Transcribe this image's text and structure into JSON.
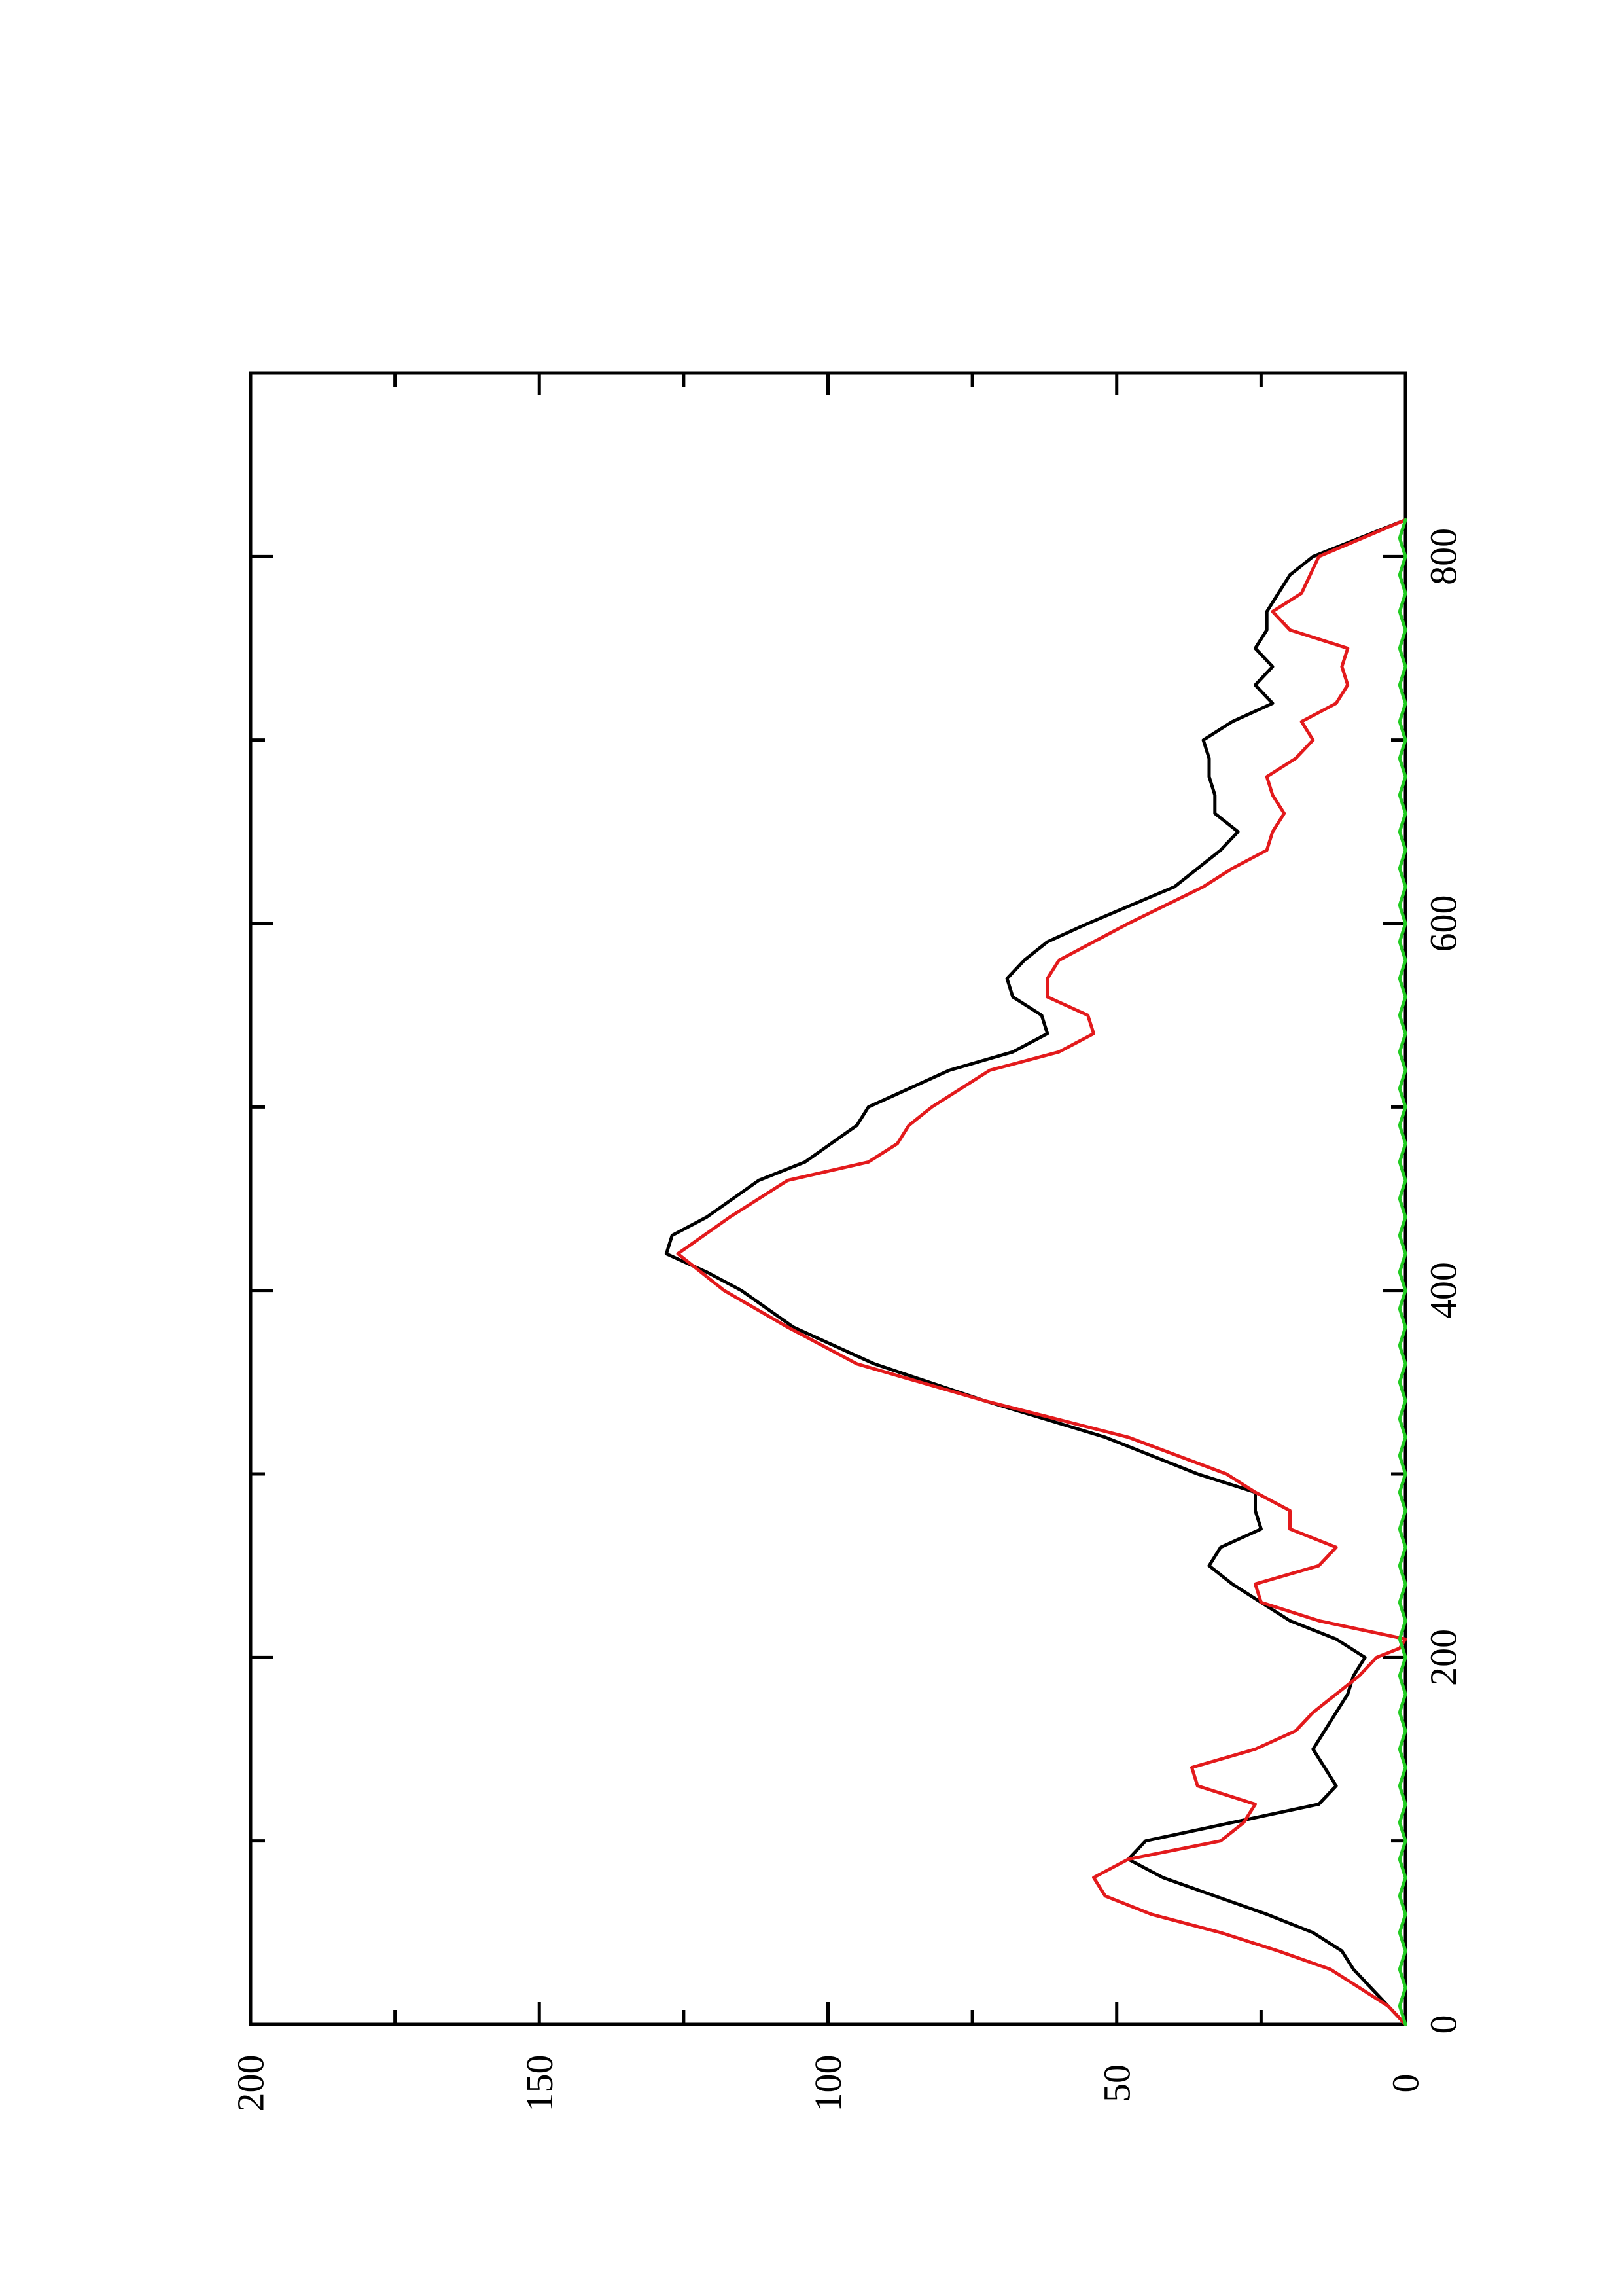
{
  "chart_data": {
    "type": "line",
    "orientation": "rotated-90-ccw",
    "title": "",
    "xlabel": "",
    "ylabel": "",
    "xlim": [
      0,
      900
    ],
    "ylim": [
      0,
      200
    ],
    "x_ticks": [
      0,
      200,
      400,
      600,
      800
    ],
    "x_minor_ticks": [
      100,
      300,
      500,
      700
    ],
    "y_ticks": [
      0,
      50,
      100,
      150,
      200
    ],
    "y_minor_ticks": [
      25,
      75,
      125,
      175
    ],
    "grid": false,
    "legend": "none",
    "series": [
      {
        "color": "#000000",
        "points": [
          [
            0,
            0
          ],
          [
            10,
            3
          ],
          [
            20,
            6
          ],
          [
            30,
            9
          ],
          [
            40,
            11
          ],
          [
            50,
            16
          ],
          [
            60,
            24
          ],
          [
            70,
            33
          ],
          [
            80,
            42
          ],
          [
            90,
            48
          ],
          [
            100,
            45
          ],
          [
            110,
            30
          ],
          [
            120,
            15
          ],
          [
            130,
            12
          ],
          [
            140,
            14
          ],
          [
            150,
            16
          ],
          [
            160,
            14
          ],
          [
            170,
            12
          ],
          [
            180,
            10
          ],
          [
            190,
            9
          ],
          [
            200,
            7
          ],
          [
            210,
            12
          ],
          [
            220,
            20
          ],
          [
            240,
            30
          ],
          [
            250,
            34
          ],
          [
            260,
            32
          ],
          [
            270,
            25
          ],
          [
            280,
            26
          ],
          [
            290,
            26
          ],
          [
            300,
            36
          ],
          [
            320,
            52
          ],
          [
            340,
            73
          ],
          [
            360,
            92
          ],
          [
            380,
            106
          ],
          [
            400,
            115
          ],
          [
            410,
            121
          ],
          [
            420,
            128
          ],
          [
            430,
            127
          ],
          [
            440,
            121
          ],
          [
            460,
            112
          ],
          [
            470,
            104
          ],
          [
            490,
            95
          ],
          [
            500,
            93
          ],
          [
            510,
            86
          ],
          [
            520,
            79
          ],
          [
            530,
            68
          ],
          [
            540,
            62
          ],
          [
            550,
            63
          ],
          [
            560,
            68
          ],
          [
            570,
            69
          ],
          [
            580,
            66
          ],
          [
            590,
            62
          ],
          [
            600,
            55
          ],
          [
            620,
            40
          ],
          [
            630,
            36
          ],
          [
            640,
            32
          ],
          [
            650,
            29
          ],
          [
            660,
            33
          ],
          [
            670,
            33
          ],
          [
            680,
            34
          ],
          [
            690,
            34
          ],
          [
            700,
            35
          ],
          [
            710,
            30
          ],
          [
            720,
            23
          ],
          [
            730,
            26
          ],
          [
            740,
            23
          ],
          [
            750,
            26
          ],
          [
            760,
            24
          ],
          [
            770,
            24
          ],
          [
            780,
            22
          ],
          [
            790,
            20
          ],
          [
            800,
            16
          ],
          [
            820,
            0
          ]
        ]
      },
      {
        "color": "#e31a1c",
        "points": [
          [
            0,
            0
          ],
          [
            10,
            3
          ],
          [
            20,
            8
          ],
          [
            30,
            13
          ],
          [
            40,
            22
          ],
          [
            50,
            32
          ],
          [
            60,
            44
          ],
          [
            70,
            52
          ],
          [
            80,
            54
          ],
          [
            90,
            48
          ],
          [
            100,
            32
          ],
          [
            110,
            28
          ],
          [
            120,
            26
          ],
          [
            130,
            36
          ],
          [
            140,
            37
          ],
          [
            150,
            26
          ],
          [
            160,
            19
          ],
          [
            170,
            16
          ],
          [
            180,
            12
          ],
          [
            190,
            8
          ],
          [
            200,
            5
          ],
          [
            205,
            1
          ],
          [
            210,
            0
          ],
          [
            220,
            15
          ],
          [
            230,
            25
          ],
          [
            240,
            26
          ],
          [
            250,
            15
          ],
          [
            260,
            12
          ],
          [
            270,
            20
          ],
          [
            280,
            20
          ],
          [
            290,
            26
          ],
          [
            300,
            31
          ],
          [
            320,
            48
          ],
          [
            340,
            73
          ],
          [
            360,
            95
          ],
          [
            380,
            107
          ],
          [
            400,
            118
          ],
          [
            420,
            126
          ],
          [
            440,
            117
          ],
          [
            460,
            107
          ],
          [
            470,
            93
          ],
          [
            480,
            88
          ],
          [
            490,
            86
          ],
          [
            500,
            82
          ],
          [
            520,
            72
          ],
          [
            530,
            60
          ],
          [
            540,
            54
          ],
          [
            550,
            55
          ],
          [
            560,
            62
          ],
          [
            570,
            62
          ],
          [
            580,
            60
          ],
          [
            590,
            54
          ],
          [
            600,
            48
          ],
          [
            620,
            35
          ],
          [
            630,
            30
          ],
          [
            640,
            24
          ],
          [
            650,
            23
          ],
          [
            660,
            21
          ],
          [
            670,
            23
          ],
          [
            680,
            24
          ],
          [
            690,
            19
          ],
          [
            700,
            16
          ],
          [
            710,
            18
          ],
          [
            720,
            12
          ],
          [
            730,
            10
          ],
          [
            740,
            11
          ],
          [
            750,
            10
          ],
          [
            760,
            20
          ],
          [
            770,
            23
          ],
          [
            780,
            18
          ],
          [
            800,
            15
          ],
          [
            820,
            0
          ]
        ]
      },
      {
        "color": "#22cc22",
        "points": [
          [
            0,
            0
          ],
          [
            10,
            1
          ],
          [
            20,
            0
          ],
          [
            30,
            1
          ],
          [
            40,
            0
          ],
          [
            50,
            1
          ],
          [
            60,
            0
          ],
          [
            70,
            1
          ],
          [
            80,
            0
          ],
          [
            90,
            1
          ],
          [
            100,
            0
          ],
          [
            110,
            1
          ],
          [
            120,
            0
          ],
          [
            130,
            1
          ],
          [
            140,
            0
          ],
          [
            150,
            1
          ],
          [
            160,
            0
          ],
          [
            170,
            1
          ],
          [
            180,
            0
          ],
          [
            190,
            1
          ],
          [
            200,
            0
          ],
          [
            210,
            1
          ],
          [
            220,
            0
          ],
          [
            230,
            1
          ],
          [
            240,
            0
          ],
          [
            250,
            1
          ],
          [
            260,
            0
          ],
          [
            270,
            1
          ],
          [
            280,
            0
          ],
          [
            290,
            1
          ],
          [
            300,
            0
          ],
          [
            310,
            1
          ],
          [
            320,
            0
          ],
          [
            330,
            1
          ],
          [
            340,
            0
          ],
          [
            350,
            1
          ],
          [
            360,
            0
          ],
          [
            370,
            1
          ],
          [
            380,
            0
          ],
          [
            390,
            1
          ],
          [
            400,
            0
          ],
          [
            410,
            1
          ],
          [
            420,
            0
          ],
          [
            430,
            1
          ],
          [
            440,
            0
          ],
          [
            450,
            1
          ],
          [
            460,
            0
          ],
          [
            470,
            1
          ],
          [
            480,
            0
          ],
          [
            490,
            1
          ],
          [
            500,
            0
          ],
          [
            510,
            1
          ],
          [
            520,
            0
          ],
          [
            530,
            1
          ],
          [
            540,
            0
          ],
          [
            550,
            1
          ],
          [
            560,
            0
          ],
          [
            570,
            1
          ],
          [
            580,
            0
          ],
          [
            590,
            1
          ],
          [
            600,
            0
          ],
          [
            610,
            1
          ],
          [
            620,
            0
          ],
          [
            630,
            1
          ],
          [
            640,
            0
          ],
          [
            650,
            1
          ],
          [
            660,
            0
          ],
          [
            670,
            1
          ],
          [
            680,
            0
          ],
          [
            690,
            1
          ],
          [
            700,
            0
          ],
          [
            710,
            1
          ],
          [
            720,
            0
          ],
          [
            730,
            1
          ],
          [
            740,
            0
          ],
          [
            750,
            1
          ],
          [
            760,
            0
          ],
          [
            770,
            1
          ],
          [
            780,
            0
          ],
          [
            790,
            1
          ],
          [
            800,
            0
          ],
          [
            810,
            1
          ],
          [
            820,
            0
          ]
        ]
      }
    ]
  }
}
